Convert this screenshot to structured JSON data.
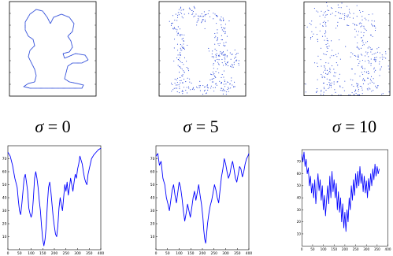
{
  "colors": {
    "curve": "#0000ff",
    "frame": "#000000",
    "points": "#1f3fd6"
  },
  "panels": [
    {
      "id": "sigma0",
      "sigma_symbol": "σ",
      "sigma_text": " = 0",
      "contour_noise": 0,
      "chart_data": {
        "type": "line",
        "title": "",
        "xlabel": "",
        "ylabel": "",
        "xlim": [
          0,
          400
        ],
        "ylim": [
          0,
          80
        ],
        "xticks": [
          "0",
          "50",
          "100",
          "150",
          "200",
          "250",
          "300",
          "350",
          "400"
        ],
        "yticks": [
          "10",
          "20",
          "30",
          "40",
          "50",
          "60",
          "70"
        ],
        "series": [
          {
            "values": [
              [
                0,
                75
              ],
              [
                10,
                72
              ],
              [
                20,
                65
              ],
              [
                30,
                55
              ],
              [
                40,
                48
              ],
              [
                45,
                38
              ],
              [
                50,
                30
              ],
              [
                55,
                27
              ],
              [
                60,
                35
              ],
              [
                65,
                45
              ],
              [
                70,
                55
              ],
              [
                75,
                58
              ],
              [
                80,
                52
              ],
              [
                85,
                45
              ],
              [
                90,
                32
              ],
              [
                95,
                28
              ],
              [
                100,
                25
              ],
              [
                105,
                28
              ],
              [
                110,
                40
              ],
              [
                115,
                55
              ],
              [
                120,
                60
              ],
              [
                125,
                55
              ],
              [
                130,
                48
              ],
              [
                135,
                38
              ],
              [
                140,
                30
              ],
              [
                145,
                18
              ],
              [
                150,
                8
              ],
              [
                155,
                3
              ],
              [
                160,
                8
              ],
              [
                165,
                18
              ],
              [
                170,
                35
              ],
              [
                175,
                48
              ],
              [
                180,
                52
              ],
              [
                185,
                45
              ],
              [
                190,
                35
              ],
              [
                195,
                25
              ],
              [
                200,
                18
              ],
              [
                205,
                12
              ],
              [
                210,
                10
              ],
              [
                215,
                18
              ],
              [
                220,
                32
              ],
              [
                225,
                40
              ],
              [
                230,
                35
              ],
              [
                235,
                30
              ],
              [
                240,
                40
              ],
              [
                245,
                50
              ],
              [
                250,
                45
              ],
              [
                255,
                52
              ],
              [
                260,
                42
              ],
              [
                265,
                48
              ],
              [
                270,
                55
              ],
              [
                275,
                50
              ],
              [
                280,
                45
              ],
              [
                285,
                52
              ],
              [
                290,
                58
              ],
              [
                295,
                55
              ],
              [
                300,
                62
              ],
              [
                305,
                66
              ],
              [
                310,
                72
              ],
              [
                315,
                69
              ],
              [
                320,
                66
              ],
              [
                325,
                60
              ],
              [
                330,
                55
              ],
              [
                335,
                52
              ],
              [
                340,
                50
              ],
              [
                345,
                58
              ],
              [
                350,
                62
              ],
              [
                355,
                66
              ],
              [
                360,
                70
              ],
              [
                370,
                73
              ],
              [
                380,
                75
              ],
              [
                390,
                77
              ],
              [
                400,
                78
              ]
            ]
          }
        ]
      }
    },
    {
      "id": "sigma5",
      "sigma_symbol": "σ",
      "sigma_text": " = 5",
      "contour_noise": 5,
      "chart_data": {
        "type": "line",
        "title": "",
        "xlabel": "",
        "ylabel": "",
        "xlim": [
          0,
          400
        ],
        "ylim": [
          0,
          80
        ],
        "xticks": [
          "0",
          "50",
          "100",
          "150",
          "200",
          "250",
          "300",
          "350",
          "400"
        ],
        "yticks": [
          "10",
          "20",
          "30",
          "40",
          "50",
          "60",
          "70"
        ],
        "series": [
          {
            "values": [
              [
                0,
                72
              ],
              [
                8,
                74
              ],
              [
                15,
                65
              ],
              [
                22,
                68
              ],
              [
                30,
                55
              ],
              [
                38,
                50
              ],
              [
                45,
                40
              ],
              [
                52,
                35
              ],
              [
                58,
                30
              ],
              [
                64,
                38
              ],
              [
                70,
                46
              ],
              [
                76,
                50
              ],
              [
                82,
                42
              ],
              [
                88,
                36
              ],
              [
                94,
                44
              ],
              [
                100,
                52
              ],
              [
                106,
                48
              ],
              [
                112,
                40
              ],
              [
                118,
                30
              ],
              [
                124,
                22
              ],
              [
                130,
                28
              ],
              [
                136,
                35
              ],
              [
                142,
                30
              ],
              [
                148,
                25
              ],
              [
                154,
                32
              ],
              [
                160,
                40
              ],
              [
                166,
                45
              ],
              [
                172,
                38
              ],
              [
                178,
                44
              ],
              [
                184,
                50
              ],
              [
                190,
                42
              ],
              [
                196,
                35
              ],
              [
                202,
                25
              ],
              [
                206,
                15
              ],
              [
                210,
                8
              ],
              [
                214,
                5
              ],
              [
                218,
                12
              ],
              [
                222,
                20
              ],
              [
                228,
                28
              ],
              [
                234,
                34
              ],
              [
                240,
                38
              ],
              [
                246,
                44
              ],
              [
                252,
                50
              ],
              [
                258,
                46
              ],
              [
                264,
                40
              ],
              [
                270,
                36
              ],
              [
                276,
                46
              ],
              [
                282,
                56
              ],
              [
                288,
                62
              ],
              [
                294,
                70
              ],
              [
                300,
                66
              ],
              [
                306,
                60
              ],
              [
                312,
                55
              ],
              [
                318,
                58
              ],
              [
                324,
                64
              ],
              [
                330,
                68
              ],
              [
                336,
                62
              ],
              [
                342,
                55
              ],
              [
                348,
                52
              ],
              [
                354,
                58
              ],
              [
                360,
                64
              ],
              [
                366,
                62
              ],
              [
                372,
                56
              ],
              [
                378,
                60
              ],
              [
                384,
                66
              ],
              [
                390,
                70
              ],
              [
                396,
                72
              ],
              [
                400,
                74
              ]
            ]
          }
        ]
      }
    },
    {
      "id": "sigma10",
      "sigma_symbol": "σ",
      "sigma_text": " = 10",
      "contour_noise": 10,
      "chart_data": {
        "type": "line",
        "title": "",
        "xlabel": "",
        "ylabel": "",
        "xlim": [
          0,
          400
        ],
        "ylim": [
          0,
          80
        ],
        "xticks": [
          "0",
          "50",
          "100",
          "150",
          "200",
          "250",
          "300",
          "350",
          "400"
        ],
        "yticks": [
          "10",
          "20",
          "30",
          "40",
          "50",
          "60",
          "70"
        ],
        "series": [
          {
            "values": [
              [
                0,
                76
              ],
              [
                5,
                70
              ],
              [
                10,
                78
              ],
              [
                15,
                66
              ],
              [
                20,
                72
              ],
              [
                25,
                60
              ],
              [
                30,
                65
              ],
              [
                35,
                50
              ],
              [
                40,
                58
              ],
              [
                45,
                44
              ],
              [
                50,
                52
              ],
              [
                55,
                40
              ],
              [
                60,
                55
              ],
              [
                65,
                35
              ],
              [
                70,
                48
              ],
              [
                75,
                60
              ],
              [
                80,
                46
              ],
              [
                85,
                55
              ],
              [
                90,
                38
              ],
              [
                95,
                50
              ],
              [
                100,
                30
              ],
              [
                105,
                42
              ],
              [
                110,
                25
              ],
              [
                115,
                38
              ],
              [
                120,
                50
              ],
              [
                125,
                35
              ],
              [
                130,
                58
              ],
              [
                135,
                40
              ],
              [
                140,
                62
              ],
              [
                145,
                45
              ],
              [
                150,
                55
              ],
              [
                155,
                40
              ],
              [
                160,
                52
              ],
              [
                165,
                30
              ],
              [
                170,
                45
              ],
              [
                175,
                28
              ],
              [
                180,
                40
              ],
              [
                185,
                20
              ],
              [
                190,
                35
              ],
              [
                195,
                15
              ],
              [
                200,
                28
              ],
              [
                205,
                12
              ],
              [
                210,
                30
              ],
              [
                215,
                20
              ],
              [
                220,
                40
              ],
              [
                225,
                30
              ],
              [
                230,
                50
              ],
              [
                235,
                38
              ],
              [
                240,
                55
              ],
              [
                245,
                42
              ],
              [
                250,
                60
              ],
              [
                255,
                48
              ],
              [
                260,
                62
              ],
              [
                265,
                50
              ],
              [
                270,
                66
              ],
              [
                275,
                52
              ],
              [
                280,
                60
              ],
              [
                285,
                45
              ],
              [
                290,
                58
              ],
              [
                295,
                44
              ],
              [
                300,
                54
              ],
              [
                305,
                40
              ],
              [
                310,
                56
              ],
              [
                315,
                46
              ],
              [
                320,
                60
              ],
              [
                325,
                50
              ],
              [
                330,
                64
              ],
              [
                335,
                55
              ],
              [
                340,
                68
              ],
              [
                345,
                58
              ],
              [
                350,
                66
              ],
              [
                355,
                60
              ],
              [
                360,
                64
              ]
            ]
          }
        ]
      }
    }
  ]
}
